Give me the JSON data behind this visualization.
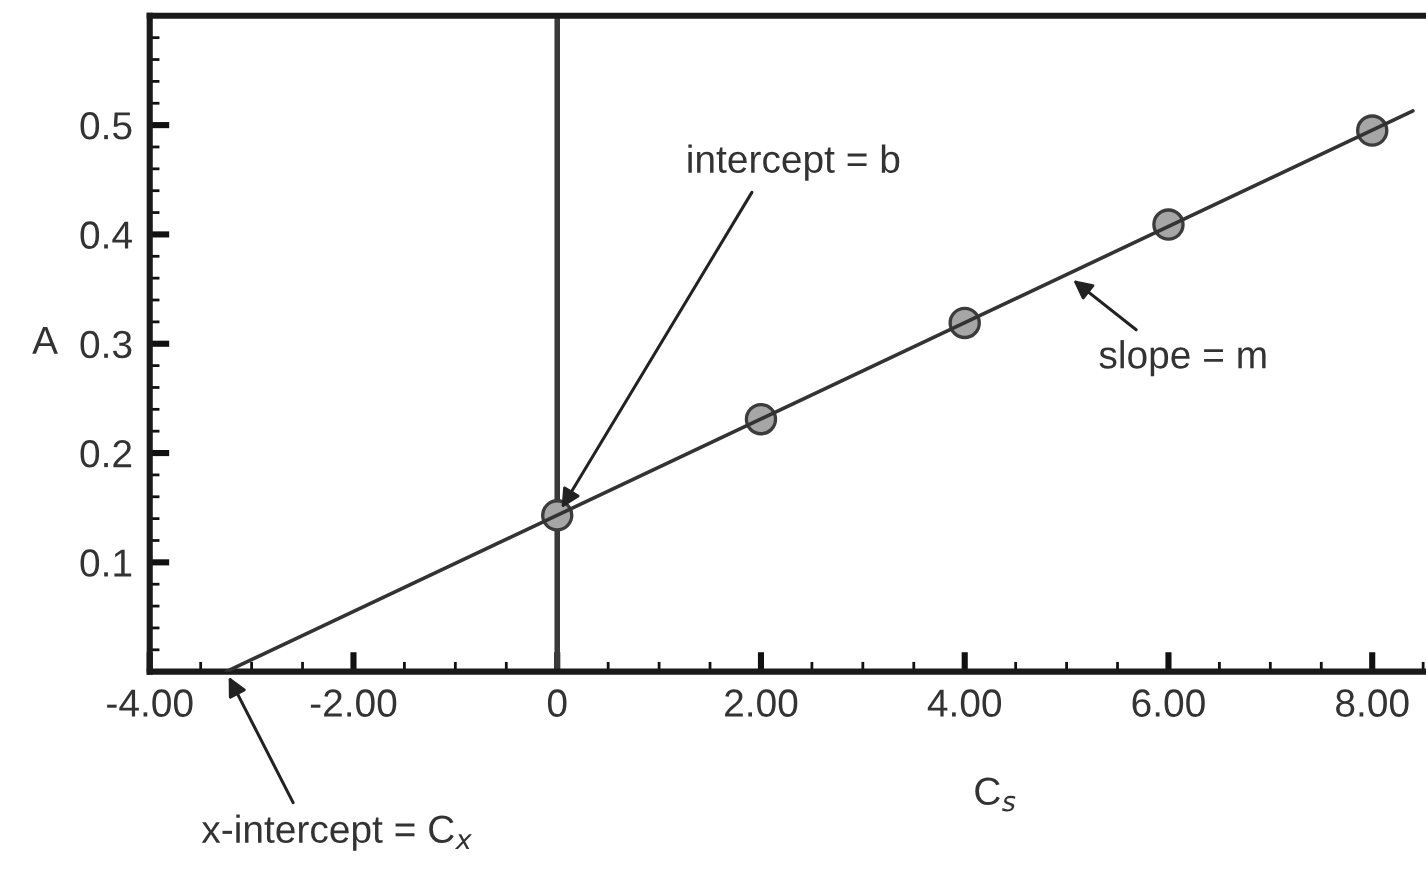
{
  "chart_data": {
    "type": "scatter",
    "xlabel": "C$_{s}$",
    "ylabel": "A",
    "xlim": [
      -4,
      8.5
    ],
    "ylim": [
      0,
      0.6
    ],
    "xticks": [
      {
        "value": -4,
        "label": "-4.00"
      },
      {
        "value": -2,
        "label": "-2.00"
      },
      0,
      {
        "value": 2,
        "label": "2.00"
      },
      {
        "value": 4,
        "label": "4.00"
      },
      {
        "value": 6,
        "label": "6.00"
      },
      {
        "value": 8,
        "label": "8.00"
      }
    ],
    "yticks": [
      0.1,
      0.2,
      0.3,
      0.4,
      0.5
    ],
    "series": [
      {
        "color": "#a6a6a6",
        "marker": "circle",
        "x": [
          0,
          2,
          4,
          6,
          8
        ],
        "values": [
          0.143,
          0.231,
          0.319,
          0.409,
          0.495
        ]
      },
      {
        "type": "line",
        "color": "#333333",
        "marker": "none",
        "line_style": "solid",
        "x": [
          -3.25,
          8.4
        ],
        "values": [
          0,
          0.513
        ]
      }
    ],
    "ref_lines": [
      {
        "axis": "x",
        "value": 0,
        "color": "#3a3a3a"
      }
    ],
    "annotations": [
      {
        "text": "intercept = b",
        "x": 0,
        "y": 0.143
      },
      {
        "text": "slope = m",
        "x": 5,
        "y": 0.363
      },
      {
        "text": "x-intercept = C$_{x}$",
        "x": -3.25,
        "y": 0
      }
    ],
    "grid": false
  }
}
